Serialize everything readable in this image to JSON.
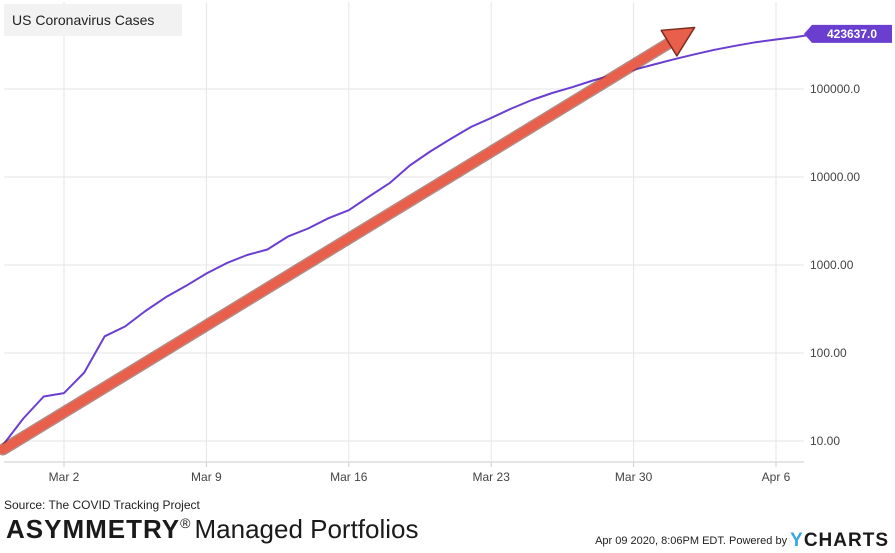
{
  "chart_data": {
    "type": "line",
    "title": "US Coronavirus Cases",
    "scale": "log",
    "grid": true,
    "legend": "top-left",
    "x_ticks": [
      "Mar 2",
      "Mar 9",
      "Mar 16",
      "Mar 23",
      "Mar 30",
      "Apr 6"
    ],
    "y_ticks": [
      "10.00",
      "100.00",
      "1000.00",
      "10000.00",
      "100000.0"
    ],
    "ylim": [
      6,
      500000
    ],
    "last_value_label": "423637.0",
    "series": [
      {
        "name": "US Coronavirus Cases",
        "color": "#6a3fd0",
        "points": [
          [
            "2020-02-28",
            9
          ],
          [
            "2020-02-29",
            18
          ],
          [
            "2020-03-01",
            32
          ],
          [
            "2020-03-02",
            35
          ],
          [
            "2020-03-03",
            60
          ],
          [
            "2020-03-04",
            155
          ],
          [
            "2020-03-05",
            200
          ],
          [
            "2020-03-06",
            300
          ],
          [
            "2020-03-07",
            430
          ],
          [
            "2020-03-08",
            580
          ],
          [
            "2020-03-09",
            800
          ],
          [
            "2020-03-10",
            1050
          ],
          [
            "2020-03-11",
            1300
          ],
          [
            "2020-03-12",
            1500
          ],
          [
            "2020-03-13",
            2100
          ],
          [
            "2020-03-14",
            2600
          ],
          [
            "2020-03-15",
            3400
          ],
          [
            "2020-03-16",
            4200
          ],
          [
            "2020-03-17",
            6000
          ],
          [
            "2020-03-18",
            8500
          ],
          [
            "2020-03-19",
            13500
          ],
          [
            "2020-03-20",
            19500
          ],
          [
            "2020-03-21",
            27000
          ],
          [
            "2020-03-22",
            37000
          ],
          [
            "2020-03-23",
            47000
          ],
          [
            "2020-03-24",
            60000
          ],
          [
            "2020-03-25",
            75000
          ],
          [
            "2020-03-26",
            90000
          ],
          [
            "2020-03-27",
            105000
          ],
          [
            "2020-03-28",
            125000
          ],
          [
            "2020-03-29",
            145000
          ],
          [
            "2020-03-30",
            165000
          ],
          [
            "2020-03-31",
            190000
          ],
          [
            "2020-04-01",
            218000
          ],
          [
            "2020-04-02",
            248000
          ],
          [
            "2020-04-03",
            280000
          ],
          [
            "2020-04-04",
            310000
          ],
          [
            "2020-04-05",
            340000
          ],
          [
            "2020-04-06",
            365000
          ],
          [
            "2020-04-07",
            390000
          ],
          [
            "2020-04-08",
            423637
          ]
        ]
      }
    ],
    "annotation": {
      "type": "arrow",
      "color": "#e8604c",
      "from": [
        "2020-02-28",
        8
      ],
      "to": [
        "2020-04-02",
        500000
      ]
    }
  },
  "footer": {
    "source": "Source: The COVID Tracking Project",
    "brand_bold": "ASYMMETRY",
    "brand_reg": "®",
    "brand_light": "Managed Portfolios",
    "timestamp": "Apr 09 2020, 8:06PM EDT.",
    "powered_by": "Powered by",
    "ycharts_y": "Y",
    "ycharts_rest": "CHARTS"
  }
}
